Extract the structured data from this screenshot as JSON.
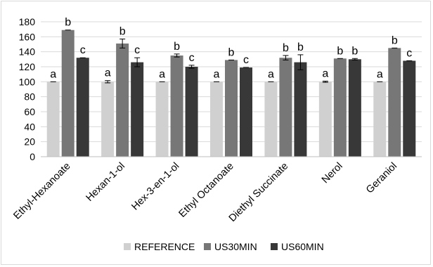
{
  "chart_data": {
    "type": "bar",
    "categories": [
      "Ethyl-Hexanoate",
      "Hexan-1-ol",
      "Hex-3-en-1-ol",
      "Ethyl Octanoate",
      "Diethyl Succinate",
      "Nerol",
      "Geraniol"
    ],
    "series": [
      {
        "name": "REFERENCE",
        "color": "#d0d0d0",
        "values": [
          100,
          100,
          100,
          100,
          100,
          100,
          100
        ],
        "errors": [
          0,
          1.5,
          0,
          0,
          0,
          0.8,
          0
        ],
        "letters": [
          "a",
          "a",
          "a",
          "a",
          "a",
          "a",
          "a"
        ]
      },
      {
        "name": "US30MIN",
        "color": "#777777",
        "values": [
          169,
          151,
          135,
          129,
          132,
          131,
          145
        ],
        "errors": [
          0,
          6,
          2,
          0,
          3,
          0,
          0
        ],
        "letters": [
          "b",
          "b",
          "b",
          "b",
          "b",
          "b",
          "b"
        ]
      },
      {
        "name": "US60MIN",
        "color": "#383838",
        "values": [
          132,
          126,
          120,
          119,
          126,
          130,
          128
        ],
        "errors": [
          0,
          6,
          2,
          0,
          10,
          1,
          0
        ],
        "letters": [
          "c",
          "c",
          "c",
          "c",
          "b",
          "b",
          "c"
        ]
      }
    ],
    "ylim": [
      0,
      180
    ],
    "yticks": [
      0,
      20,
      40,
      60,
      80,
      100,
      120,
      140,
      160,
      180
    ],
    "grid": true,
    "legend_position": "bottom"
  }
}
